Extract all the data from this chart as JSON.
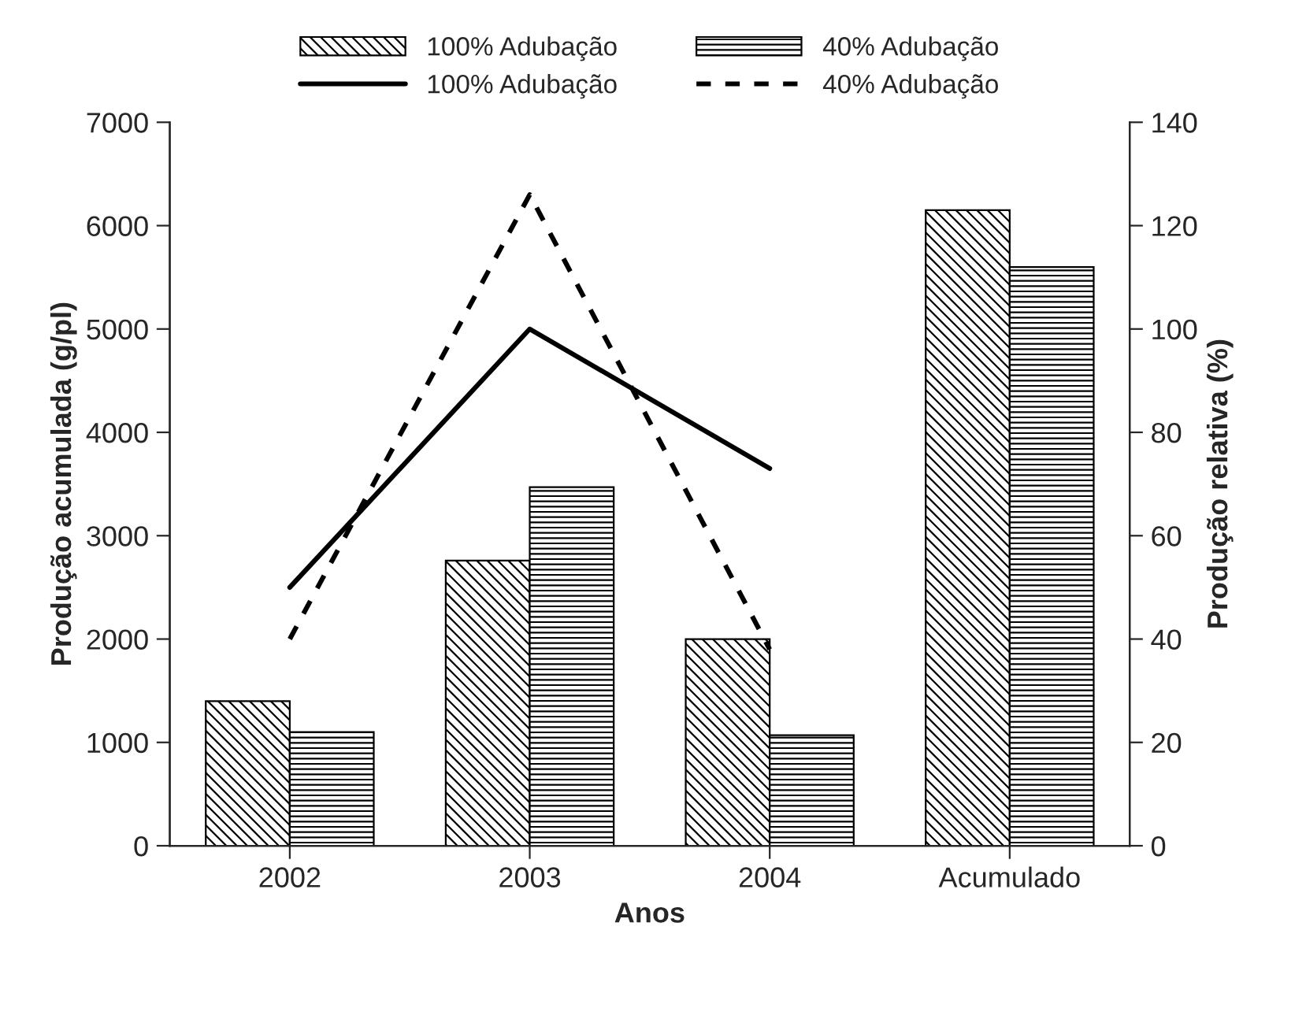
{
  "chart_data": {
    "type": "bar",
    "xlabel": "Anos",
    "ylabel": "Produção acumulada (g/pl)",
    "y2label": "Produção relativa (%)",
    "categories": [
      "2002",
      "2003",
      "2004",
      "Acumulado"
    ],
    "series": [
      {
        "name": "100% Adubação",
        "color": "#000000",
        "values": [
          1400,
          2760,
          2000,
          6150
        ]
      },
      {
        "name": "40% Adubação",
        "color": "#000000",
        "values": [
          1100,
          3470,
          1070,
          5600
        ]
      },
      {
        "name": "100% Adubação",
        "type": "line",
        "axis": "y2",
        "color": "#000000",
        "line_style": "solid",
        "values": [
          50,
          100,
          73,
          null
        ]
      },
      {
        "name": "40% Adubação",
        "type": "line",
        "axis": "y2",
        "color": "#000000",
        "line_style": "dashed",
        "values": [
          40,
          126,
          38,
          null
        ]
      }
    ],
    "ylim": [
      0,
      7000
    ],
    "yticks": [
      0,
      1000,
      2000,
      3000,
      4000,
      5000,
      6000,
      7000
    ],
    "y2lim": [
      0,
      140
    ],
    "y2ticks": [
      0,
      20,
      40,
      60,
      80,
      100,
      120,
      140
    ],
    "grid": false,
    "legend": "top",
    "marker": "none"
  }
}
